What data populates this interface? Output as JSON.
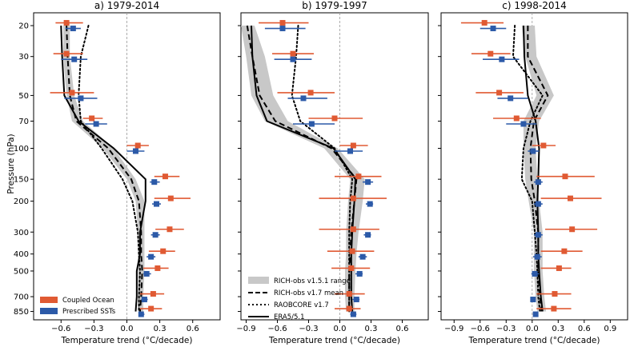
{
  "figure": {
    "ylabel": "Pressure (hPa)",
    "xlabel": "Temperature trend (°C/decade)"
  },
  "legend_left": [
    {
      "label": "Coupled Ocean",
      "color": "#e05a33"
    },
    {
      "label": "Prescribed SSTs",
      "color": "#2c5aa8"
    }
  ],
  "legend_right": [
    {
      "label": "RICH-obs v1.5.1 range",
      "style": "band"
    },
    {
      "label": "RICH-obs v1.7 mean",
      "style": "dashed"
    },
    {
      "label": "RAOBCORE v1.7",
      "style": "dotted"
    },
    {
      "label": "ERA5/5.1",
      "style": "solid"
    }
  ],
  "chart_data": [
    {
      "type": "line",
      "title": "a) 1979-2014",
      "xlabel": "Temperature trend (°C/decade)",
      "ylabel": "Pressure (hPa)",
      "y_scale": "log",
      "y_inverted": true,
      "xlim": [
        -0.85,
        0.85
      ],
      "ylim": [
        900,
        18
      ],
      "xticks": [
        -0.6,
        -0.3,
        0.0,
        0.3,
        0.6
      ],
      "xtick_labels": [
        "−0.6",
        "−0.3",
        "0.0",
        "0.3",
        "0.6"
      ],
      "yticks": [
        20,
        30,
        50,
        70,
        100,
        150,
        200,
        300,
        400,
        500,
        700,
        850
      ],
      "pressure": [
        20,
        30,
        50,
        70,
        100,
        150,
        200,
        300,
        400,
        500,
        700,
        850
      ],
      "band": {
        "low": [
          -0.58,
          -0.58,
          -0.55,
          -0.5,
          -0.22,
          0.0,
          0.08,
          0.1,
          0.1,
          0.1,
          0.1,
          0.1
        ],
        "high": [
          -0.52,
          -0.52,
          -0.48,
          -0.4,
          -0.12,
          0.08,
          0.16,
          0.16,
          0.16,
          0.16,
          0.15,
          0.15
        ]
      },
      "series": [
        {
          "name": "RICH-obs v1.7 mean",
          "style": "dashed",
          "values": [
            -0.55,
            -0.54,
            -0.52,
            -0.46,
            -0.17,
            0.04,
            0.11,
            0.13,
            0.13,
            0.14,
            0.13,
            0.12
          ]
        },
        {
          "name": "RAOBCORE v1.7",
          "style": "dotted",
          "values": [
            -0.35,
            -0.42,
            -0.44,
            -0.42,
            -0.23,
            -0.04,
            0.05,
            0.1,
            0.11,
            0.12,
            0.11,
            0.11
          ]
        },
        {
          "name": "ERA5/5.1",
          "style": "solid",
          "values": [
            -0.6,
            -0.59,
            -0.57,
            -0.44,
            -0.12,
            0.17,
            0.17,
            0.12,
            0.12,
            0.09,
            0.09,
            0.08
          ]
        },
        {
          "name": "Coupled Ocean",
          "style": "errorbar",
          "values": [
            -0.55,
            -0.55,
            -0.5,
            -0.32,
            0.1,
            0.35,
            0.4,
            0.39,
            0.33,
            0.28,
            0.24,
            0.22
          ],
          "err_low": [
            -0.65,
            -0.67,
            -0.7,
            -0.4,
            0.0,
            0.25,
            0.25,
            0.26,
            0.2,
            0.15,
            0.12,
            0.12
          ],
          "err_high": [
            -0.4,
            -0.4,
            -0.3,
            -0.22,
            0.2,
            0.48,
            0.58,
            0.52,
            0.44,
            0.38,
            0.34,
            0.32
          ]
        },
        {
          "name": "Prescribed SSTs",
          "style": "errorbar",
          "values": [
            -0.49,
            -0.48,
            -0.42,
            -0.28,
            0.08,
            0.25,
            0.27,
            0.26,
            0.22,
            0.18,
            0.16,
            0.13
          ],
          "err_low": [
            -0.56,
            -0.6,
            -0.57,
            -0.38,
            0.0,
            0.21,
            0.23,
            0.22,
            0.18,
            0.15,
            0.13,
            0.11
          ],
          "err_high": [
            -0.42,
            -0.36,
            -0.27,
            -0.18,
            0.16,
            0.3,
            0.31,
            0.3,
            0.26,
            0.22,
            0.19,
            0.16
          ]
        }
      ]
    },
    {
      "type": "line",
      "title": "b) 1979-1997",
      "xlabel": "Temperature trend (°C/decade)",
      "ylabel": "",
      "y_scale": "log",
      "y_inverted": true,
      "xlim": [
        -0.95,
        0.85
      ],
      "ylim": [
        900,
        18
      ],
      "xticks": [
        -0.9,
        -0.6,
        -0.3,
        0.0,
        0.3,
        0.6
      ],
      "xtick_labels": [
        "−0.9",
        "−0.6",
        "−0.3",
        "0.0",
        "0.3",
        "0.6"
      ],
      "yticks": [
        20,
        30,
        50,
        70,
        100,
        150,
        200,
        300,
        400,
        500,
        700,
        850
      ],
      "pressure": [
        20,
        30,
        50,
        70,
        100,
        150,
        200,
        300,
        400,
        500,
        700,
        850
      ],
      "band": {
        "low": [
          -0.95,
          -0.9,
          -0.85,
          -0.72,
          -0.15,
          0.1,
          0.08,
          0.06,
          0.06,
          0.05,
          0.05,
          0.06
        ],
        "high": [
          -0.82,
          -0.72,
          -0.64,
          -0.5,
          -0.02,
          0.24,
          0.22,
          0.18,
          0.16,
          0.15,
          0.14,
          0.14
        ]
      },
      "series": [
        {
          "name": "RICH-obs v1.7 mean",
          "style": "dashed",
          "values": [
            -0.89,
            -0.84,
            -0.77,
            -0.62,
            -0.08,
            0.16,
            0.14,
            0.11,
            0.1,
            0.09,
            0.09,
            0.09
          ]
        },
        {
          "name": "RAOBCORE v1.7",
          "style": "dotted",
          "values": [
            -0.4,
            -0.42,
            -0.46,
            -0.38,
            -0.05,
            0.12,
            0.1,
            0.09,
            0.09,
            0.09,
            0.09,
            0.09
          ]
        },
        {
          "name": "ERA5/5.1",
          "style": "solid",
          "values": [
            -0.85,
            -0.84,
            -0.8,
            -0.7,
            -0.06,
            0.15,
            0.14,
            0.12,
            0.11,
            0.11,
            0.11,
            0.12
          ]
        },
        {
          "name": "Coupled Ocean",
          "style": "errorbar",
          "values": [
            -0.55,
            -0.45,
            -0.28,
            -0.05,
            0.13,
            0.18,
            0.13,
            0.13,
            0.12,
            0.11,
            0.09,
            0.09
          ],
          "err_low": [
            -0.78,
            -0.65,
            -0.6,
            -0.3,
            0.0,
            -0.05,
            -0.2,
            -0.2,
            -0.12,
            -0.08,
            -0.05,
            -0.05
          ],
          "err_high": [
            -0.3,
            -0.25,
            -0.05,
            0.22,
            0.27,
            0.4,
            0.45,
            0.38,
            0.33,
            0.29,
            0.24,
            0.2
          ]
        },
        {
          "name": "Prescribed SSTs",
          "style": "errorbar",
          "values": [
            -0.55,
            -0.45,
            -0.35,
            -0.27,
            0.1,
            0.27,
            0.29,
            0.27,
            0.22,
            0.19,
            0.16,
            0.13
          ],
          "err_low": [
            -0.72,
            -0.63,
            -0.5,
            -0.45,
            -0.05,
            0.22,
            0.25,
            0.23,
            0.18,
            0.15,
            0.12,
            0.1
          ],
          "err_high": [
            -0.33,
            -0.27,
            -0.12,
            -0.05,
            0.22,
            0.32,
            0.32,
            0.3,
            0.26,
            0.22,
            0.19,
            0.16
          ]
        }
      ]
    },
    {
      "type": "line",
      "title": "c) 1998-2014",
      "xlabel": "Temperature trend (°C/decade)",
      "ylabel": "",
      "y_scale": "log",
      "y_inverted": true,
      "xlim": [
        -1.05,
        1.1
      ],
      "ylim": [
        900,
        18
      ],
      "xticks": [
        -0.9,
        -0.6,
        -0.3,
        0.0,
        0.3,
        0.6,
        0.9
      ],
      "xtick_labels": [
        "−0.9",
        "−0.6",
        "−0.3",
        "0.0",
        "0.3",
        "0.6",
        "0.9"
      ],
      "yticks": [
        20,
        30,
        50,
        70,
        100,
        150,
        200,
        300,
        400,
        500,
        700,
        850
      ],
      "pressure": [
        20,
        30,
        50,
        70,
        100,
        150,
        200,
        300,
        400,
        500,
        700,
        850
      ],
      "band": {
        "low": [
          -0.12,
          -0.08,
          0.05,
          -0.1,
          -0.1,
          -0.08,
          -0.04,
          0.02,
          0.02,
          0.02,
          0.04,
          0.06
        ],
        "high": [
          0.03,
          0.05,
          0.25,
          0.08,
          0.04,
          0.06,
          0.08,
          0.12,
          0.12,
          0.12,
          0.14,
          0.16
        ]
      },
      "series": [
        {
          "name": "RICH-obs v1.7 mean",
          "style": "dashed",
          "values": [
            -0.05,
            -0.05,
            0.18,
            0.02,
            -0.02,
            -0.01,
            0.03,
            0.07,
            0.07,
            0.07,
            0.09,
            0.11
          ]
        },
        {
          "name": "RAOBCORE v1.7",
          "style": "dotted",
          "values": [
            -0.2,
            -0.22,
            0.12,
            -0.02,
            -0.1,
            -0.12,
            0.0,
            0.03,
            0.05,
            0.06,
            0.07,
            0.09
          ]
        },
        {
          "name": "ERA5/5.1",
          "style": "solid",
          "values": [
            -0.1,
            -0.09,
            -0.05,
            0.04,
            0.08,
            0.07,
            0.06,
            0.07,
            0.07,
            0.08,
            0.1,
            0.12
          ]
        },
        {
          "name": "Coupled Ocean",
          "style": "errorbar",
          "values": [
            -0.55,
            -0.48,
            -0.38,
            -0.18,
            0.13,
            0.38,
            0.44,
            0.46,
            0.37,
            0.31,
            0.26,
            0.25
          ],
          "err_low": [
            -0.82,
            -0.7,
            -0.65,
            -0.45,
            0.0,
            0.05,
            0.1,
            0.15,
            0.1,
            0.1,
            0.05,
            0.05
          ],
          "err_high": [
            -0.33,
            -0.25,
            -0.1,
            0.1,
            0.27,
            0.72,
            0.8,
            0.75,
            0.58,
            0.45,
            0.45,
            0.45
          ]
        },
        {
          "name": "Prescribed SSTs",
          "style": "errorbar",
          "values": [
            -0.45,
            -0.35,
            -0.25,
            -0.1,
            0.01,
            0.07,
            0.07,
            0.07,
            0.06,
            0.03,
            0.01,
            0.04
          ],
          "err_low": [
            -0.6,
            -0.57,
            -0.4,
            -0.3,
            -0.05,
            0.02,
            0.02,
            0.02,
            0.01,
            -0.01,
            -0.02,
            0.01
          ],
          "err_high": [
            -0.3,
            -0.15,
            -0.05,
            0.05,
            0.08,
            0.12,
            0.12,
            0.12,
            0.11,
            0.08,
            0.04,
            0.07
          ]
        }
      ]
    }
  ]
}
